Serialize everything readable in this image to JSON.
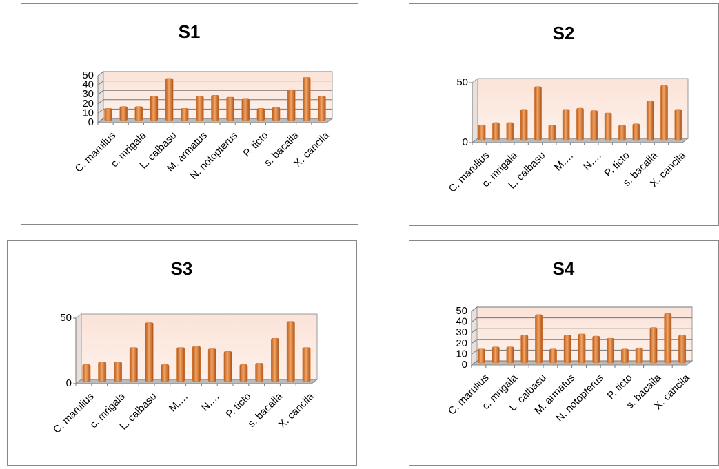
{
  "chart_data": [
    {
      "type": "bar",
      "title": "S1",
      "color": "#d9782f",
      "grid": true,
      "categories": [
        "C. marulius",
        null,
        "c. mrigala",
        null,
        "L. calbasu",
        null,
        "M. armatus",
        null,
        "N. notopterus",
        null,
        "P. ticto",
        null,
        "s. bacaila",
        null,
        "X. cancila"
      ],
      "values": [
        13,
        15,
        15,
        26,
        45,
        13,
        26,
        27,
        25,
        23,
        13,
        14,
        33,
        46,
        26
      ],
      "ylim": [
        0,
        50
      ],
      "yticks": [
        0,
        10,
        20,
        30,
        40,
        50
      ]
    },
    {
      "type": "bar",
      "title": "S2",
      "color": "#d9782f",
      "grid": false,
      "categories": [
        "C. marulius",
        null,
        "c. mrigala",
        null,
        "L. calbasu",
        null,
        "M.…",
        null,
        "N.…",
        null,
        "P. ticto",
        null,
        "s. bacaila",
        null,
        "X. cancila"
      ],
      "values": [
        13,
        15,
        15,
        26,
        45,
        13,
        26,
        27,
        25,
        23,
        13,
        14,
        33,
        46,
        26
      ],
      "ylim": [
        0,
        50
      ],
      "yticks": [
        0,
        50
      ]
    },
    {
      "type": "bar",
      "title": "S3",
      "color": "#d9782f",
      "grid": false,
      "categories": [
        "C. marulius",
        null,
        "c. mrigala",
        null,
        "L. calbasu",
        null,
        "M.…",
        null,
        "N.…",
        null,
        "P. ticto",
        null,
        "s. bacaila",
        null,
        "X. cancila"
      ],
      "values": [
        13,
        15,
        15,
        26,
        45,
        13,
        26,
        27,
        25,
        23,
        13,
        14,
        33,
        46,
        26
      ],
      "ylim": [
        0,
        50
      ],
      "yticks": [
        0,
        50
      ]
    },
    {
      "type": "bar",
      "title": "S4",
      "color": "#d9782f",
      "grid": true,
      "categories": [
        "C. marulius",
        null,
        "c. mrigala",
        null,
        "L. calbasu",
        null,
        "M. armatus",
        null,
        "N. notopterus",
        null,
        "P. ticto",
        null,
        "s. bacaila",
        null,
        "X. cancila"
      ],
      "values": [
        13,
        15,
        15,
        26,
        45,
        13,
        26,
        27,
        25,
        23,
        13,
        14,
        33,
        46,
        26
      ],
      "ylim": [
        0,
        50
      ],
      "yticks": [
        0,
        10,
        20,
        30,
        40,
        50
      ]
    }
  ]
}
